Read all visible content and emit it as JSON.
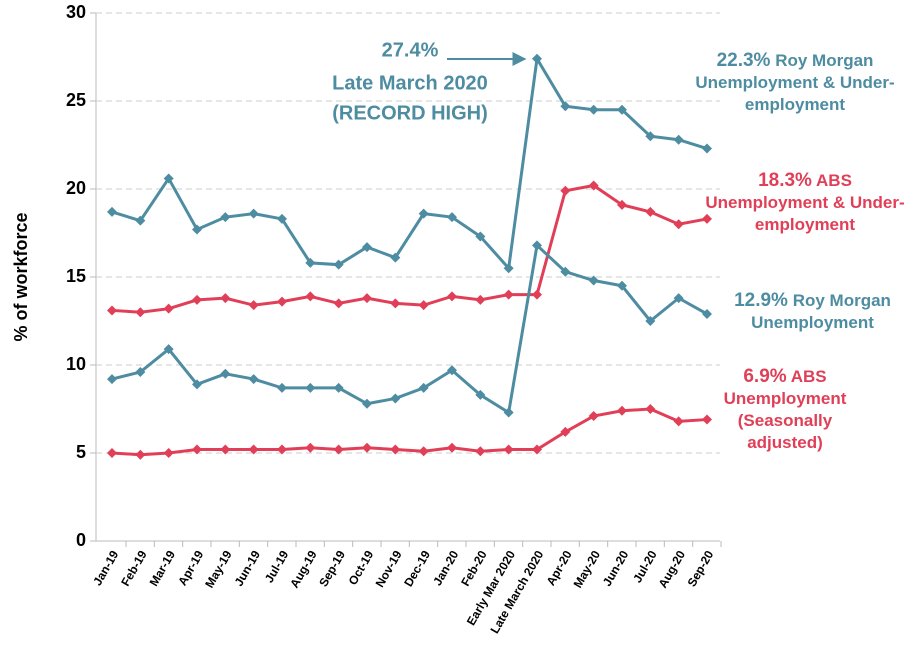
{
  "chart_data": {
    "type": "line",
    "y_label": "% of workforce",
    "categories": [
      "Jan-19",
      "Feb-19",
      "Mar-19",
      "Apr-19",
      "May-19",
      "Jun-19",
      "Jul-19",
      "Aug-19",
      "Sep-19",
      "Oct-19",
      "Nov-19",
      "Dec-19",
      "Jan-20",
      "Feb-20",
      "Early Mar 2020",
      "Late March 2020",
      "Apr-20",
      "May-20",
      "Jun-20",
      "Jul-20",
      "Aug-20",
      "Sep-20"
    ],
    "series": [
      {
        "name": "Roy Morgan Unemployment & Under-employment",
        "color": "#4d8ca1",
        "values": [
          18.7,
          18.2,
          20.6,
          17.7,
          18.4,
          18.6,
          18.3,
          15.8,
          15.7,
          16.7,
          16.1,
          18.6,
          18.4,
          17.3,
          15.5,
          27.4,
          24.7,
          24.5,
          24.5,
          23.0,
          22.8,
          22.3
        ],
        "value_labels": [
          null,
          null,
          null,
          null,
          null,
          null,
          null,
          null,
          null,
          null,
          null,
          null,
          null,
          null,
          null,
          "27.4%",
          null,
          null,
          null,
          null,
          null,
          "22.3%"
        ]
      },
      {
        "name": "ABS Unemployment & Under-employment",
        "color": "#e03f57",
        "values": [
          13.1,
          13.0,
          13.2,
          13.7,
          13.8,
          13.4,
          13.6,
          13.9,
          13.5,
          13.8,
          13.5,
          13.4,
          13.9,
          13.7,
          14.0,
          14.0,
          19.9,
          20.2,
          19.1,
          18.7,
          18.0,
          18.3
        ],
        "value_labels": [
          null,
          null,
          null,
          null,
          null,
          null,
          null,
          null,
          null,
          null,
          null,
          null,
          null,
          null,
          null,
          null,
          null,
          null,
          null,
          null,
          null,
          "18.3%"
        ]
      },
      {
        "name": "Roy Morgan Unemployment",
        "color": "#4d8ca1",
        "values": [
          9.2,
          9.6,
          10.9,
          8.9,
          9.5,
          9.2,
          8.7,
          8.7,
          8.7,
          7.8,
          8.1,
          8.7,
          9.7,
          8.3,
          7.3,
          16.8,
          15.3,
          14.8,
          14.5,
          12.5,
          13.8,
          12.9
        ],
        "value_labels": [
          null,
          null,
          null,
          null,
          null,
          null,
          null,
          null,
          null,
          null,
          null,
          null,
          null,
          null,
          null,
          null,
          null,
          null,
          null,
          null,
          null,
          "12.9%"
        ]
      },
      {
        "name": "ABS Unemployment (Seasonally adjusted)",
        "color": "#e03f57",
        "values": [
          5.0,
          4.9,
          5.0,
          5.2,
          5.2,
          5.2,
          5.2,
          5.3,
          5.2,
          5.3,
          5.2,
          5.1,
          5.3,
          5.1,
          5.2,
          5.2,
          6.2,
          7.1,
          7.4,
          7.5,
          6.8,
          6.9
        ],
        "value_labels": [
          null,
          null,
          null,
          null,
          null,
          null,
          null,
          null,
          null,
          null,
          null,
          null,
          null,
          null,
          null,
          null,
          null,
          null,
          null,
          null,
          null,
          "6.9%"
        ]
      }
    ],
    "annotation": [
      "Late March 2020",
      "(RECORD HIGH)"
    ],
    "ylim": [
      0,
      30
    ],
    "yticks": [
      0,
      5,
      10,
      15,
      20,
      25,
      30
    ],
    "grid": true
  }
}
